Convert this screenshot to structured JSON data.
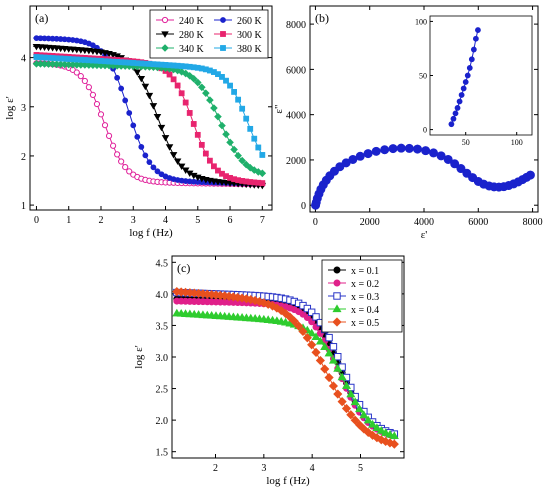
{
  "chart_data": [
    {
      "type": "line",
      "panel_label": "(a)",
      "xlabel": "log f (Hz)",
      "ylabel": "log ε'",
      "xlim": [
        -0.2,
        7.3
      ],
      "ylim": [
        0.9,
        5.05
      ],
      "xticks": [
        0,
        1,
        2,
        3,
        4,
        5,
        6,
        7
      ],
      "yticks": [
        1,
        2,
        3,
        4
      ],
      "grid": false,
      "legend_position": "top-right",
      "series": [
        {
          "name": "240 K",
          "color": "#e0209a",
          "marker": "circle-open",
          "high": 3.87,
          "low": 1.47,
          "center": 2.1,
          "width": 0.34,
          "tail": 0.03
        },
        {
          "name": "260 K",
          "color": "#1a22cc",
          "marker": "circle",
          "high": 4.35,
          "low": 1.5,
          "center": 2.85,
          "width": 0.35,
          "tail": 0.05
        },
        {
          "name": "280 K",
          "color": "#000000",
          "marker": "triangle-down",
          "high": 4.05,
          "low": 1.55,
          "center": 3.75,
          "width": 0.36,
          "tail": 0.14
        },
        {
          "name": "300 K",
          "color": "#e8246e",
          "marker": "square",
          "high": 3.86,
          "low": 1.53,
          "center": 4.85,
          "width": 0.33,
          "tail": 0.12
        },
        {
          "name": "340 K",
          "color": "#1fb06b",
          "marker": "diamond",
          "high": 3.78,
          "low": 1.6,
          "center": 5.7,
          "width": 0.38,
          "tail": 0.05
        },
        {
          "name": "380 K",
          "color": "#22a8e6",
          "marker": "square",
          "high": 3.75,
          "low": 1.6,
          "center": 6.55,
          "width": 0.33,
          "tail": 0.12
        }
      ]
    },
    {
      "type": "scatter",
      "panel_label": "(b)",
      "xlabel": "ε'",
      "ylabel": "ε\"",
      "xlim": [
        -200,
        8200
      ],
      "ylim": [
        -300,
        8800
      ],
      "xticks": [
        0,
        2000,
        4000,
        6000,
        8000
      ],
      "yticks": [
        0,
        2000,
        4000,
        6000,
        8000
      ],
      "color": "#1a22cc",
      "points": [
        [
          5,
          0
        ],
        [
          30,
          120
        ],
        [
          70,
          300
        ],
        [
          130,
          500
        ],
        [
          200,
          700
        ],
        [
          290,
          900
        ],
        [
          400,
          1100
        ],
        [
          530,
          1300
        ],
        [
          700,
          1500
        ],
        [
          900,
          1700
        ],
        [
          1130,
          1870
        ],
        [
          1380,
          2020
        ],
        [
          1650,
          2160
        ],
        [
          1940,
          2280
        ],
        [
          2240,
          2380
        ],
        [
          2550,
          2450
        ],
        [
          2860,
          2500
        ],
        [
          3160,
          2520
        ],
        [
          3460,
          2510
        ],
        [
          3760,
          2480
        ],
        [
          4060,
          2410
        ],
        [
          4350,
          2310
        ],
        [
          4630,
          2180
        ],
        [
          4890,
          2020
        ],
        [
          5130,
          1830
        ],
        [
          5360,
          1620
        ],
        [
          5580,
          1410
        ],
        [
          5790,
          1220
        ],
        [
          6000,
          1050
        ],
        [
          6200,
          930
        ],
        [
          6400,
          850
        ],
        [
          6580,
          810
        ],
        [
          6760,
          800
        ],
        [
          6940,
          820
        ],
        [
          7120,
          870
        ],
        [
          7300,
          940
        ],
        [
          7470,
          1030
        ],
        [
          7630,
          1130
        ],
        [
          7780,
          1230
        ],
        [
          7920,
          1330
        ]
      ],
      "inset": {
        "xlim": [
          15,
          115
        ],
        "ylim": [
          -5,
          105
        ],
        "xticks": [
          50,
          100
        ],
        "yticks": [
          0,
          50,
          100
        ],
        "points": [
          [
            36,
            5
          ],
          [
            38,
            10
          ],
          [
            40,
            15
          ],
          [
            42,
            20
          ],
          [
            44,
            26
          ],
          [
            46,
            32
          ],
          [
            48,
            38
          ],
          [
            50,
            44
          ],
          [
            52,
            50
          ],
          [
            54,
            57
          ],
          [
            56,
            65
          ],
          [
            58,
            74
          ],
          [
            60,
            84
          ],
          [
            62,
            92
          ]
        ]
      }
    },
    {
      "type": "line",
      "panel_label": "(c)",
      "xlabel": "log f (Hz)",
      "ylabel": "log ε'",
      "xlim": [
        1.1,
        5.9
      ],
      "ylim": [
        1.4,
        4.6
      ],
      "xticks": [
        2,
        3,
        4,
        5
      ],
      "yticks": [
        1.5,
        2.0,
        2.5,
        3.0,
        3.5,
        4.0,
        4.5
      ],
      "grid": false,
      "legend_position": "top-right",
      "series": [
        {
          "name": "x = 0.1",
          "color": "#000000",
          "marker": "circle",
          "high": 3.85,
          "low": 1.72,
          "center": 4.6,
          "width": 0.3,
          "tail": 0.06
        },
        {
          "name": "x = 0.2",
          "color": "#e0208a",
          "marker": "circle",
          "high": 3.83,
          "low": 1.73,
          "center": 4.55,
          "width": 0.3,
          "tail": 0.05
        },
        {
          "name": "x = 0.3",
          "color": "#2a36c8",
          "marker": "square-open",
          "high": 3.93,
          "low": 1.75,
          "center": 4.62,
          "width": 0.3,
          "tail": 0.08
        },
        {
          "name": "x = 0.4",
          "color": "#2ecc2e",
          "marker": "triangle-up",
          "high": 3.52,
          "low": 1.75,
          "center": 4.65,
          "width": 0.3,
          "tail": 0.15
        },
        {
          "name": "x = 0.5",
          "color": "#e8501e",
          "marker": "diamond",
          "high": 3.85,
          "low": 1.65,
          "center": 4.3,
          "width": 0.38,
          "tail": 0.18
        }
      ]
    }
  ]
}
